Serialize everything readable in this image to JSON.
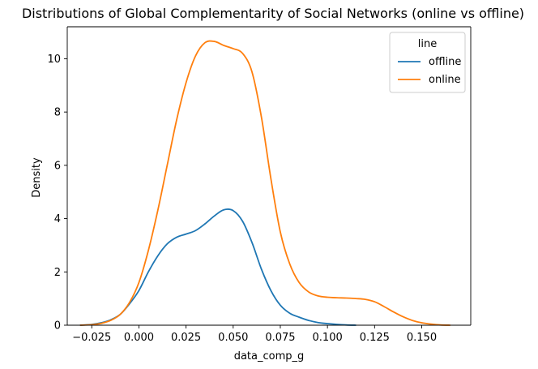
{
  "chart_data": {
    "type": "line",
    "title": "Distributions of Global Complementarity of Social Networks (online vs offline)",
    "xlabel": "data_comp_g",
    "ylabel": "Density",
    "xlim": [
      -0.038,
      0.176
    ],
    "ylim": [
      0,
      11.2
    ],
    "xticks": [
      -0.025,
      0.0,
      0.025,
      0.05,
      0.075,
      0.1,
      0.125,
      0.15
    ],
    "xtick_labels": [
      "−0.025",
      "0.000",
      "0.025",
      "0.050",
      "0.075",
      "0.100",
      "0.125",
      "0.150"
    ],
    "yticks": [
      0,
      2,
      4,
      6,
      8,
      10
    ],
    "ytick_labels": [
      "0",
      "2",
      "4",
      "6",
      "8",
      "10"
    ],
    "grid": false,
    "legend": {
      "title": "line",
      "placement": "upper-right"
    },
    "series": [
      {
        "name": "offline",
        "color": "#1f77b4",
        "x": [
          -0.031,
          -0.025,
          -0.02,
          -0.015,
          -0.01,
          -0.005,
          0.0,
          0.005,
          0.01,
          0.015,
          0.02,
          0.025,
          0.03,
          0.035,
          0.04,
          0.045,
          0.05,
          0.055,
          0.06,
          0.065,
          0.07,
          0.075,
          0.08,
          0.085,
          0.09,
          0.095,
          0.1,
          0.105,
          0.11,
          0.115
        ],
        "values": [
          0.0,
          0.03,
          0.09,
          0.2,
          0.4,
          0.8,
          1.3,
          2.0,
          2.6,
          3.05,
          3.3,
          3.42,
          3.55,
          3.8,
          4.1,
          4.33,
          4.3,
          3.9,
          3.1,
          2.1,
          1.3,
          0.75,
          0.45,
          0.3,
          0.18,
          0.1,
          0.06,
          0.03,
          0.01,
          0.0
        ]
      },
      {
        "name": "online",
        "color": "#ff7f0e",
        "x": [
          -0.031,
          -0.025,
          -0.02,
          -0.015,
          -0.01,
          -0.005,
          0.0,
          0.005,
          0.01,
          0.015,
          0.02,
          0.025,
          0.03,
          0.035,
          0.04,
          0.045,
          0.05,
          0.055,
          0.06,
          0.065,
          0.07,
          0.075,
          0.08,
          0.085,
          0.09,
          0.095,
          0.1,
          0.105,
          0.11,
          0.115,
          0.12,
          0.125,
          0.13,
          0.135,
          0.14,
          0.145,
          0.15,
          0.155,
          0.16,
          0.165
        ],
        "values": [
          0.0,
          0.02,
          0.07,
          0.18,
          0.4,
          0.85,
          1.6,
          2.8,
          4.3,
          6.0,
          7.7,
          9.1,
          10.1,
          10.6,
          10.65,
          10.5,
          10.38,
          10.2,
          9.5,
          7.8,
          5.5,
          3.5,
          2.3,
          1.6,
          1.25,
          1.1,
          1.05,
          1.03,
          1.02,
          1.0,
          0.97,
          0.88,
          0.7,
          0.5,
          0.32,
          0.18,
          0.09,
          0.04,
          0.01,
          0.0
        ]
      }
    ]
  }
}
